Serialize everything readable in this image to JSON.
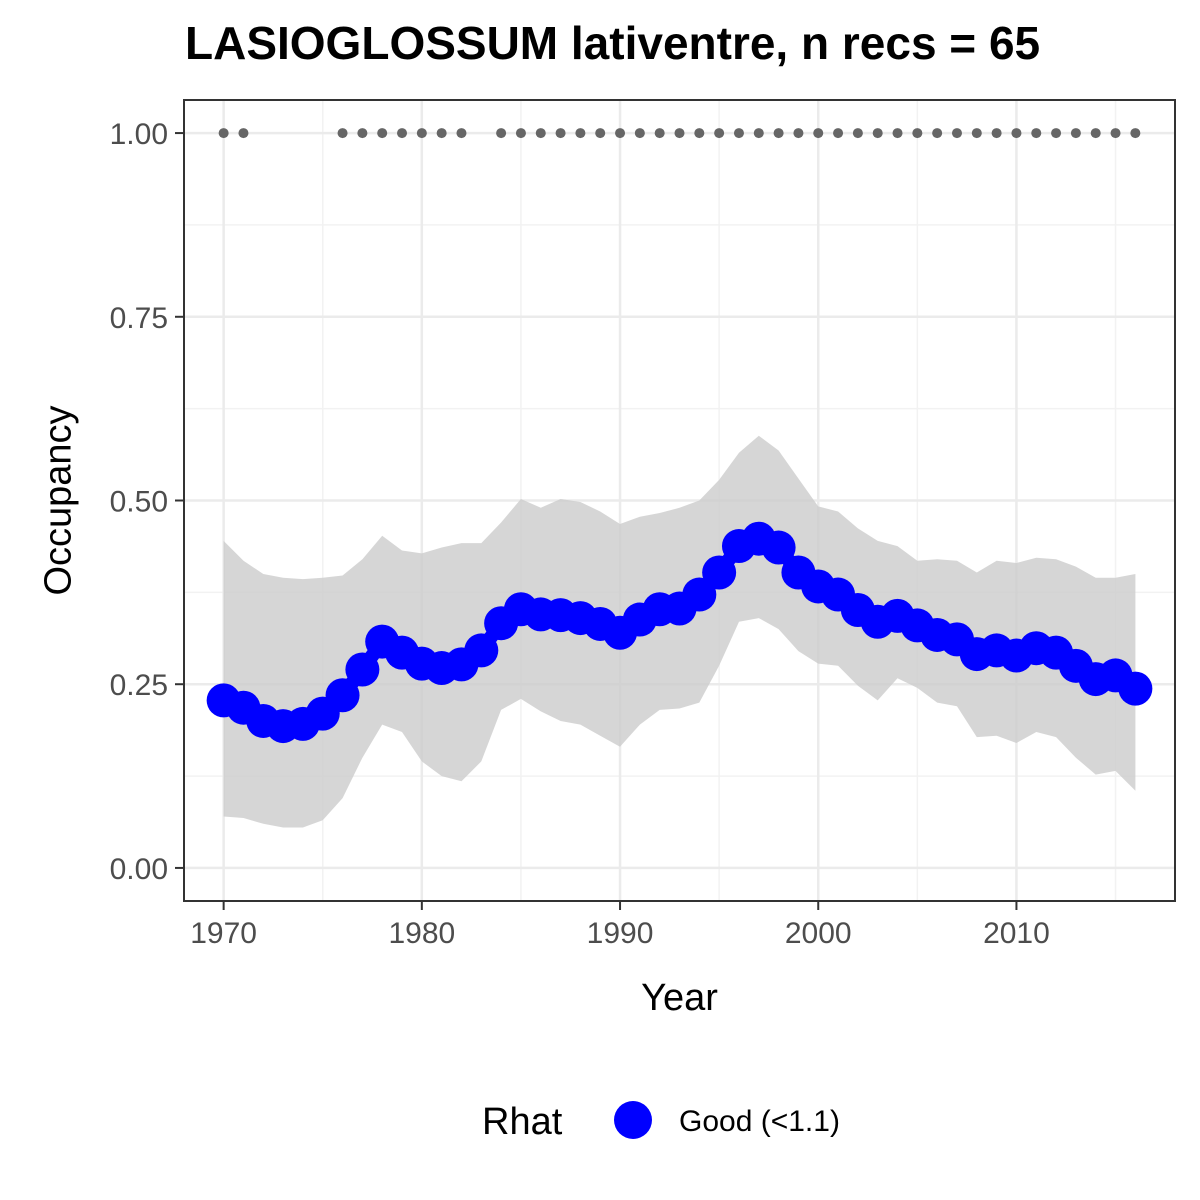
{
  "chart_data": {
    "type": "line",
    "title": "LASIOGLOSSUM lativentre, n recs = 65",
    "xlabel": "Year",
    "ylabel": "Occupancy",
    "xlim": [
      1968,
      2018
    ],
    "ylim": [
      -0.045,
      1.045
    ],
    "x_ticks": [
      1970,
      1980,
      1990,
      2000,
      2010
    ],
    "x_tick_labels": [
      "1970",
      "1980",
      "1990",
      "2000",
      "2010"
    ],
    "y_ticks": [
      0,
      0.25,
      0.5,
      0.75,
      1.0
    ],
    "y_tick_labels": [
      "0.00",
      "0.25",
      "0.50",
      "0.75",
      "1.00"
    ],
    "grid": true,
    "x": [
      1970,
      1971,
      1972,
      1973,
      1974,
      1975,
      1976,
      1977,
      1978,
      1979,
      1980,
      1981,
      1982,
      1983,
      1984,
      1985,
      1986,
      1987,
      1988,
      1989,
      1990,
      1991,
      1992,
      1993,
      1994,
      1995,
      1996,
      1997,
      1998,
      1999,
      2000,
      2001,
      2002,
      2003,
      2004,
      2005,
      2006,
      2007,
      2008,
      2009,
      2010,
      2011,
      2012,
      2013,
      2014,
      2015,
      2016
    ],
    "series": [
      {
        "name": "Good (<1.1)",
        "color": "#0000ff",
        "mean": [
          0.228,
          0.218,
          0.2,
          0.193,
          0.196,
          0.21,
          0.235,
          0.27,
          0.308,
          0.293,
          0.278,
          0.272,
          0.277,
          0.296,
          0.333,
          0.352,
          0.345,
          0.344,
          0.34,
          0.332,
          0.32,
          0.338,
          0.352,
          0.353,
          0.372,
          0.402,
          0.438,
          0.448,
          0.436,
          0.402,
          0.383,
          0.372,
          0.351,
          0.335,
          0.343,
          0.33,
          0.317,
          0.311,
          0.291,
          0.296,
          0.289,
          0.299,
          0.293,
          0.275,
          0.257,
          0.262,
          0.244
        ],
        "lower": [
          0.07,
          0.068,
          0.06,
          0.055,
          0.055,
          0.065,
          0.095,
          0.15,
          0.195,
          0.185,
          0.145,
          0.125,
          0.118,
          0.145,
          0.215,
          0.23,
          0.213,
          0.2,
          0.195,
          0.18,
          0.165,
          0.195,
          0.215,
          0.217,
          0.225,
          0.275,
          0.335,
          0.34,
          0.325,
          0.295,
          0.278,
          0.275,
          0.248,
          0.228,
          0.258,
          0.245,
          0.225,
          0.22,
          0.178,
          0.18,
          0.17,
          0.185,
          0.178,
          0.15,
          0.127,
          0.132,
          0.105
        ],
        "upper": [
          0.445,
          0.418,
          0.4,
          0.395,
          0.393,
          0.395,
          0.398,
          0.42,
          0.452,
          0.432,
          0.428,
          0.436,
          0.442,
          0.442,
          0.47,
          0.502,
          0.49,
          0.502,
          0.498,
          0.485,
          0.468,
          0.478,
          0.483,
          0.49,
          0.5,
          0.528,
          0.565,
          0.588,
          0.568,
          0.53,
          0.492,
          0.485,
          0.462,
          0.445,
          0.438,
          0.418,
          0.42,
          0.418,
          0.402,
          0.418,
          0.415,
          0.422,
          0.42,
          0.41,
          0.395,
          0.395,
          0.4
        ]
      }
    ],
    "record_years": [
      1970,
      1971,
      1976,
      1977,
      1978,
      1979,
      1980,
      1981,
      1982,
      1984,
      1985,
      1986,
      1987,
      1988,
      1989,
      1990,
      1991,
      1992,
      1993,
      1994,
      1995,
      1996,
      1997,
      1998,
      1999,
      2000,
      2001,
      2002,
      2003,
      2004,
      2005,
      2006,
      2007,
      2008,
      2009,
      2010,
      2011,
      2012,
      2013,
      2014,
      2015,
      2016
    ],
    "record_value": 1.0,
    "record_color": "#666666",
    "ribbon_color": "#cccccc",
    "legend": {
      "title": "Rhat",
      "entries": [
        "Good (<1.1)"
      ],
      "placement": "bottom"
    }
  }
}
